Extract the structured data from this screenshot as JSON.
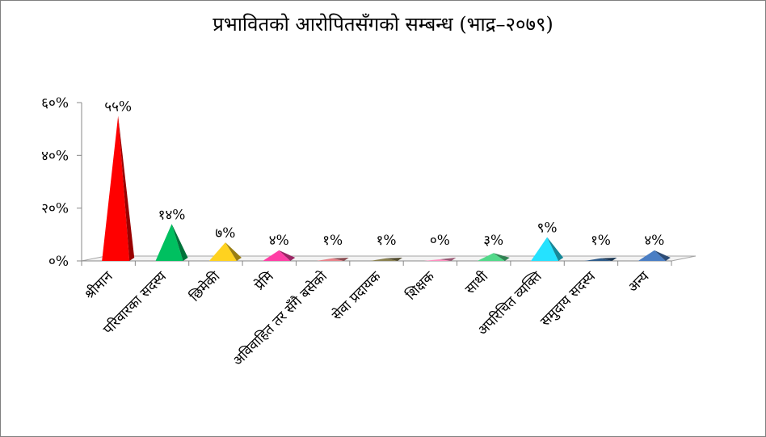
{
  "chart_data": {
    "type": "bar",
    "title": "प्रभावितको आरोपितसँगको सम्बन्ध (भाद्र–२०७९)",
    "xlabel": "",
    "ylabel": "",
    "ylim": [
      0,
      60
    ],
    "y_ticks": [
      0,
      20,
      40,
      60
    ],
    "y_tick_labels": [
      "०%",
      "२०%",
      "४०%",
      "६०%"
    ],
    "grid": false,
    "legend": "none",
    "categories": [
      "श्रीमान",
      "परिवारका सदस्य",
      "छिमेकी",
      "प्रेमि",
      "अविवाहित तर सँगै बसेको",
      "सेवा प्रदायक",
      "शिक्षक",
      "साथी",
      "अपरिचित व्यक्ति",
      "समुदाय सदस्य",
      "अन्य"
    ],
    "values": [
      55,
      14,
      7,
      4,
      1,
      1,
      0,
      3,
      9,
      1,
      4
    ],
    "value_labels": [
      "५५%",
      "१४%",
      "७%",
      "४%",
      "१%",
      "१%",
      "०%",
      "३%",
      "९%",
      "१%",
      "४%"
    ],
    "colors": [
      "#ff0000",
      "#00c060",
      "#ffd21f",
      "#ff3ea5",
      "#e8828a",
      "#8a8150",
      "#ff8fc0",
      "#52d98a",
      "#25e2ff",
      "#2e5b8a",
      "#4a7ec4"
    ]
  }
}
